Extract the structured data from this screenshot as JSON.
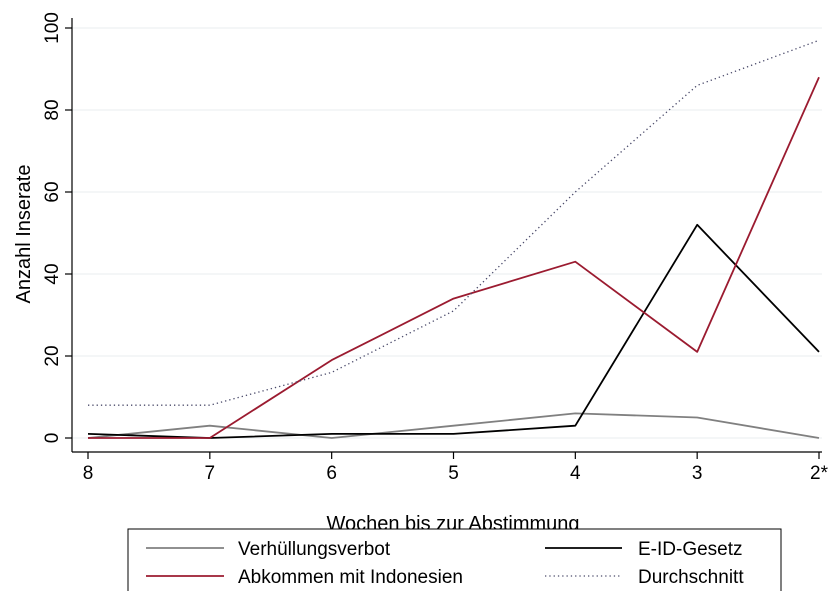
{
  "chart_data": {
    "type": "line",
    "title": "",
    "xlabel": "Wochen bis zur Abstimmung",
    "ylabel": "Anzahl Inserate",
    "categories": [
      "8",
      "7",
      "6",
      "5",
      "4",
      "3",
      "2*"
    ],
    "yticks": [
      0,
      20,
      40,
      60,
      80,
      100
    ],
    "ylim": [
      0,
      100
    ],
    "grid": true,
    "legend_position": "bottom",
    "series": [
      {
        "name": "Verhüllungsverbot",
        "values": [
          0,
          3,
          0,
          3,
          6,
          5,
          0
        ],
        "color": "#808080",
        "style": "solid"
      },
      {
        "name": "E-ID-Gesetz",
        "values": [
          1,
          0,
          1,
          1,
          3,
          52,
          21
        ],
        "color": "#000000",
        "style": "solid"
      },
      {
        "name": "Abkommen mit Indonesien",
        "values": [
          0,
          0,
          19,
          34,
          43,
          21,
          88
        ],
        "color": "#9b1b30",
        "style": "solid"
      },
      {
        "name": "Durchschnitt",
        "values": [
          8,
          8,
          16,
          31,
          60,
          86,
          97
        ],
        "color": "#4a4a6a",
        "style": "dotted"
      }
    ]
  }
}
